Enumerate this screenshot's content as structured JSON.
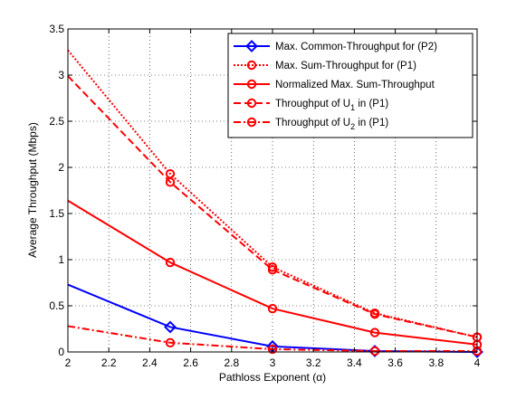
{
  "chart_data": {
    "type": "line",
    "xlabel": "Pathloss Exponent (α)",
    "ylabel": "Average Throughput (Mbps)",
    "xlim": [
      2,
      4
    ],
    "ylim": [
      0,
      3.5
    ],
    "grid": true,
    "legend_position": "top-right",
    "xticks": [
      "2",
      "2.2",
      "2.4",
      "2.6",
      "2.8",
      "3",
      "3.2",
      "3.4",
      "3.6",
      "3.8",
      "4"
    ],
    "yticks": [
      "0",
      "0.5",
      "1",
      "1.5",
      "2",
      "2.5",
      "3",
      "3.5"
    ],
    "x": [
      2,
      2.5,
      3,
      3.5,
      4
    ],
    "series": [
      {
        "name_parts": {
          "main": "Max. Common-Throughput for (P2)",
          "sub": "",
          "tail": ""
        },
        "color": "#0000ff",
        "dash": "solid",
        "marker": "diamond",
        "values": [
          0.73,
          0.27,
          0.06,
          0.01,
          0.0
        ]
      },
      {
        "name_parts": {
          "main": "Max. Sum-Throughput for (P1)",
          "sub": "",
          "tail": ""
        },
        "color": "#ff0000",
        "dash": "dotted",
        "marker": "circle",
        "values": [
          3.27,
          1.93,
          0.92,
          0.42,
          0.16
        ]
      },
      {
        "name_parts": {
          "main": "Normalized Max. Sum-Throughput",
          "sub": "",
          "tail": ""
        },
        "color": "#ff0000",
        "dash": "solid",
        "marker": "circle",
        "values": [
          1.64,
          0.97,
          0.47,
          0.21,
          0.08
        ]
      },
      {
        "name_parts": {
          "main": "Throughput of U",
          "sub": "1",
          "tail": " in (P1)"
        },
        "color": "#ff0000",
        "dash": "dashed",
        "marker": "circle",
        "values": [
          2.99,
          1.84,
          0.89,
          0.41,
          0.16
        ]
      },
      {
        "name_parts": {
          "main": "Throughput of U",
          "sub": "2",
          "tail": " in (P1)"
        },
        "color": "#ff0000",
        "dash": "dashdot",
        "marker": "circle",
        "values": [
          0.28,
          0.1,
          0.03,
          0.01,
          0.01
        ]
      }
    ]
  }
}
